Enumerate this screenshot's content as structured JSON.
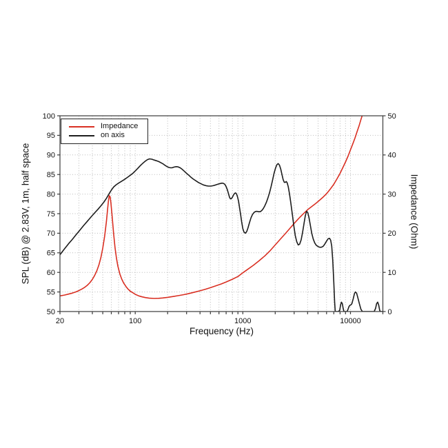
{
  "chart_data": {
    "type": "line",
    "title": "",
    "xlabel": "Frequency (Hz)",
    "ylabel_left": "SPL (dB) @ 2.83V, 1m, half space",
    "ylabel_right": "Impedance (Ohm)",
    "x_scale": "log",
    "x_range": [
      20,
      20000
    ],
    "x_ticks_labeled": [
      20,
      100,
      1000,
      10000
    ],
    "y_left_range": [
      50,
      100
    ],
    "y_left_ticks": [
      50,
      55,
      60,
      65,
      70,
      75,
      80,
      85,
      90,
      95,
      100
    ],
    "y_right_range": [
      0,
      50
    ],
    "y_right_ticks": [
      0,
      10,
      20,
      30,
      40,
      50
    ],
    "grid": "dotted",
    "grid_color": "#b8b8b8",
    "frame_color": "#3a3a3a",
    "text_color": "#111111",
    "legend": {
      "position": "top-left",
      "entries": [
        {
          "label": "Impedance",
          "color": "#d92e21"
        },
        {
          "label": "on axis",
          "color": "#1c1c1c"
        }
      ]
    },
    "series": [
      {
        "name": "Impedance",
        "axis": "right",
        "unit": "Ohm",
        "color": "#d92e21",
        "points": [
          [
            20,
            4.0
          ],
          [
            22,
            4.2
          ],
          [
            24,
            4.45
          ],
          [
            26,
            4.7
          ],
          [
            28,
            5.0
          ],
          [
            30,
            5.35
          ],
          [
            32,
            5.75
          ],
          [
            34,
            6.2
          ],
          [
            36,
            6.75
          ],
          [
            38,
            7.4
          ],
          [
            40,
            8.2
          ],
          [
            42,
            9.2
          ],
          [
            44,
            10.4
          ],
          [
            46,
            11.9
          ],
          [
            48,
            13.8
          ],
          [
            50,
            16.2
          ],
          [
            52,
            19.2
          ],
          [
            54,
            23.0
          ],
          [
            55.5,
            26.3
          ],
          [
            56.5,
            28.4
          ],
          [
            57.5,
            29.6
          ],
          [
            58.5,
            29.3
          ],
          [
            59.5,
            27.8
          ],
          [
            61,
            24.5
          ],
          [
            63,
            20.0
          ],
          [
            65,
            16.3
          ],
          [
            67,
            13.6
          ],
          [
            69,
            11.6
          ],
          [
            72,
            9.6
          ],
          [
            75,
            8.3
          ],
          [
            78,
            7.3
          ],
          [
            82,
            6.4
          ],
          [
            86,
            5.7
          ],
          [
            90,
            5.2
          ],
          [
            95,
            4.8
          ],
          [
            100,
            4.4
          ],
          [
            108,
            4.0
          ],
          [
            116,
            3.75
          ],
          [
            125,
            3.55
          ],
          [
            135,
            3.42
          ],
          [
            150,
            3.35
          ],
          [
            165,
            3.38
          ],
          [
            180,
            3.47
          ],
          [
            200,
            3.62
          ],
          [
            225,
            3.83
          ],
          [
            250,
            4.05
          ],
          [
            280,
            4.3
          ],
          [
            310,
            4.55
          ],
          [
            350,
            4.9
          ],
          [
            400,
            5.3
          ],
          [
            450,
            5.7
          ],
          [
            500,
            6.1
          ],
          [
            560,
            6.55
          ],
          [
            630,
            7.05
          ],
          [
            700,
            7.55
          ],
          [
            800,
            8.25
          ],
          [
            900,
            8.95
          ],
          [
            1000,
            9.9
          ],
          [
            1100,
            10.7
          ],
          [
            1250,
            11.8
          ],
          [
            1400,
            12.85
          ],
          [
            1600,
            14.2
          ],
          [
            1800,
            15.6
          ],
          [
            2000,
            17.0
          ],
          [
            2250,
            18.6
          ],
          [
            2500,
            20.0
          ],
          [
            2750,
            21.3
          ],
          [
            3000,
            22.5
          ],
          [
            3300,
            23.75
          ],
          [
            3600,
            24.8
          ],
          [
            4000,
            26.0
          ],
          [
            4400,
            26.9
          ],
          [
            4800,
            27.7
          ],
          [
            5200,
            28.5
          ],
          [
            5600,
            29.3
          ],
          [
            6000,
            30.1
          ],
          [
            6500,
            31.3
          ],
          [
            7000,
            32.5
          ],
          [
            7500,
            33.9
          ],
          [
            8000,
            35.3
          ],
          [
            8500,
            36.8
          ],
          [
            9000,
            38.2
          ],
          [
            9500,
            39.7
          ],
          [
            10000,
            41.3
          ],
          [
            10500,
            42.8
          ],
          [
            11000,
            44.3
          ],
          [
            11500,
            45.9
          ],
          [
            12000,
            47.4
          ],
          [
            12500,
            49.0
          ],
          [
            13000,
            50.5
          ],
          [
            13300,
            51.5
          ]
        ]
      },
      {
        "name": "on axis",
        "axis": "left",
        "unit": "dB",
        "color": "#1c1c1c",
        "points": [
          [
            20,
            64.5
          ],
          [
            22,
            66.0
          ],
          [
            24,
            67.3
          ],
          [
            26,
            68.4
          ],
          [
            28,
            69.5
          ],
          [
            30,
            70.5
          ],
          [
            33,
            71.9
          ],
          [
            36,
            73.1
          ],
          [
            39,
            74.2
          ],
          [
            42,
            75.2
          ],
          [
            45,
            76.1
          ],
          [
            48,
            77.0
          ],
          [
            51,
            77.9
          ],
          [
            54,
            78.9
          ],
          [
            57,
            80.0
          ],
          [
            60,
            81.0
          ],
          [
            63,
            81.8
          ],
          [
            66,
            82.3
          ],
          [
            70,
            82.8
          ],
          [
            74,
            83.2
          ],
          [
            78,
            83.6
          ],
          [
            82,
            84.0
          ],
          [
            86,
            84.4
          ],
          [
            90,
            84.8
          ],
          [
            95,
            85.3
          ],
          [
            100,
            85.9
          ],
          [
            106,
            86.6
          ],
          [
            112,
            87.3
          ],
          [
            118,
            87.9
          ],
          [
            124,
            88.4
          ],
          [
            130,
            88.8
          ],
          [
            136,
            89.0
          ],
          [
            143,
            88.9
          ],
          [
            150,
            88.7
          ],
          [
            158,
            88.5
          ],
          [
            166,
            88.3
          ],
          [
            174,
            88.0
          ],
          [
            182,
            87.7
          ],
          [
            190,
            87.3
          ],
          [
            198,
            87.0
          ],
          [
            206,
            86.8
          ],
          [
            214,
            86.7
          ],
          [
            222,
            86.75
          ],
          [
            230,
            86.9
          ],
          [
            240,
            87.0
          ],
          [
            250,
            86.95
          ],
          [
            262,
            86.7
          ],
          [
            274,
            86.3
          ],
          [
            287,
            85.8
          ],
          [
            300,
            85.3
          ],
          [
            315,
            84.8
          ],
          [
            330,
            84.3
          ],
          [
            348,
            83.8
          ],
          [
            366,
            83.4
          ],
          [
            385,
            83.0
          ],
          [
            405,
            82.7
          ],
          [
            430,
            82.35
          ],
          [
            455,
            82.15
          ],
          [
            480,
            82.05
          ],
          [
            505,
            82.05
          ],
          [
            530,
            82.15
          ],
          [
            560,
            82.35
          ],
          [
            590,
            82.55
          ],
          [
            615,
            82.7
          ],
          [
            640,
            82.8
          ],
          [
            660,
            82.75
          ],
          [
            680,
            82.5
          ],
          [
            700,
            81.9
          ],
          [
            718,
            81.1
          ],
          [
            736,
            80.1
          ],
          [
            752,
            79.2
          ],
          [
            766,
            78.8
          ],
          [
            780,
            78.8
          ],
          [
            800,
            79.2
          ],
          [
            820,
            79.8
          ],
          [
            840,
            80.2
          ],
          [
            858,
            80.3
          ],
          [
            875,
            80.0
          ],
          [
            893,
            79.3
          ],
          [
            912,
            78.2
          ],
          [
            932,
            76.6
          ],
          [
            953,
            74.8
          ],
          [
            975,
            72.9
          ],
          [
            1000,
            71.2
          ],
          [
            1025,
            70.3
          ],
          [
            1055,
            70.0
          ],
          [
            1085,
            70.4
          ],
          [
            1115,
            71.3
          ],
          [
            1150,
            72.6
          ],
          [
            1190,
            73.9
          ],
          [
            1230,
            74.8
          ],
          [
            1270,
            75.3
          ],
          [
            1310,
            75.55
          ],
          [
            1355,
            75.6
          ],
          [
            1400,
            75.5
          ],
          [
            1450,
            75.5
          ],
          [
            1500,
            75.8
          ],
          [
            1550,
            76.3
          ],
          [
            1600,
            77.0
          ],
          [
            1655,
            77.9
          ],
          [
            1710,
            79.0
          ],
          [
            1770,
            80.3
          ],
          [
            1830,
            81.9
          ],
          [
            1890,
            83.6
          ],
          [
            1950,
            85.3
          ],
          [
            2010,
            86.6
          ],
          [
            2070,
            87.5
          ],
          [
            2130,
            87.8
          ],
          [
            2190,
            87.4
          ],
          [
            2250,
            86.4
          ],
          [
            2310,
            85.0
          ],
          [
            2370,
            83.7
          ],
          [
            2430,
            83.0
          ],
          [
            2480,
            83.0
          ],
          [
            2530,
            83.2
          ],
          [
            2580,
            82.9
          ],
          [
            2640,
            81.9
          ],
          [
            2710,
            80.2
          ],
          [
            2790,
            77.8
          ],
          [
            2880,
            74.9
          ],
          [
            2970,
            72.0
          ],
          [
            3070,
            69.4
          ],
          [
            3170,
            67.8
          ],
          [
            3270,
            67.0
          ],
          [
            3370,
            67.2
          ],
          [
            3480,
            68.3
          ],
          [
            3590,
            70.2
          ],
          [
            3700,
            72.5
          ],
          [
            3810,
            74.5
          ],
          [
            3910,
            75.6
          ],
          [
            4010,
            75.3
          ],
          [
            4120,
            74.0
          ],
          [
            4240,
            72.0
          ],
          [
            4370,
            70.0
          ],
          [
            4510,
            68.5
          ],
          [
            4660,
            67.5
          ],
          [
            4820,
            66.9
          ],
          [
            5000,
            66.6
          ],
          [
            5200,
            66.4
          ],
          [
            5400,
            66.45
          ],
          [
            5600,
            66.7
          ],
          [
            5800,
            67.3
          ],
          [
            6000,
            68.0
          ],
          [
            6200,
            68.6
          ],
          [
            6400,
            68.7
          ],
          [
            6550,
            68.2
          ],
          [
            6700,
            66.7
          ],
          [
            6850,
            63.0
          ],
          [
            7000,
            57.5
          ],
          [
            7120,
            52.5
          ],
          [
            7220,
            50.0
          ],
          [
            7700,
            50.0
          ],
          [
            7950,
            50.3
          ],
          [
            8100,
            51.7
          ],
          [
            8250,
            52.4
          ],
          [
            8400,
            52.0
          ],
          [
            8550,
            50.8
          ],
          [
            8700,
            50.0
          ],
          [
            9300,
            50.0
          ],
          [
            9500,
            50.6
          ],
          [
            9700,
            51.3
          ],
          [
            9900,
            51.6
          ],
          [
            10100,
            51.7
          ],
          [
            10300,
            52.0
          ],
          [
            10600,
            53.2
          ],
          [
            10900,
            54.6
          ],
          [
            11100,
            55.0
          ],
          [
            11400,
            54.7
          ],
          [
            11700,
            53.6
          ],
          [
            12100,
            52.0
          ],
          [
            12500,
            50.6
          ],
          [
            12900,
            50.0
          ],
          [
            16600,
            50.0
          ],
          [
            17100,
            50.8
          ],
          [
            17500,
            52.0
          ],
          [
            17900,
            52.4
          ],
          [
            18300,
            51.6
          ],
          [
            18700,
            50.3
          ],
          [
            19000,
            50.0
          ],
          [
            20000,
            50.0
          ]
        ]
      }
    ]
  }
}
